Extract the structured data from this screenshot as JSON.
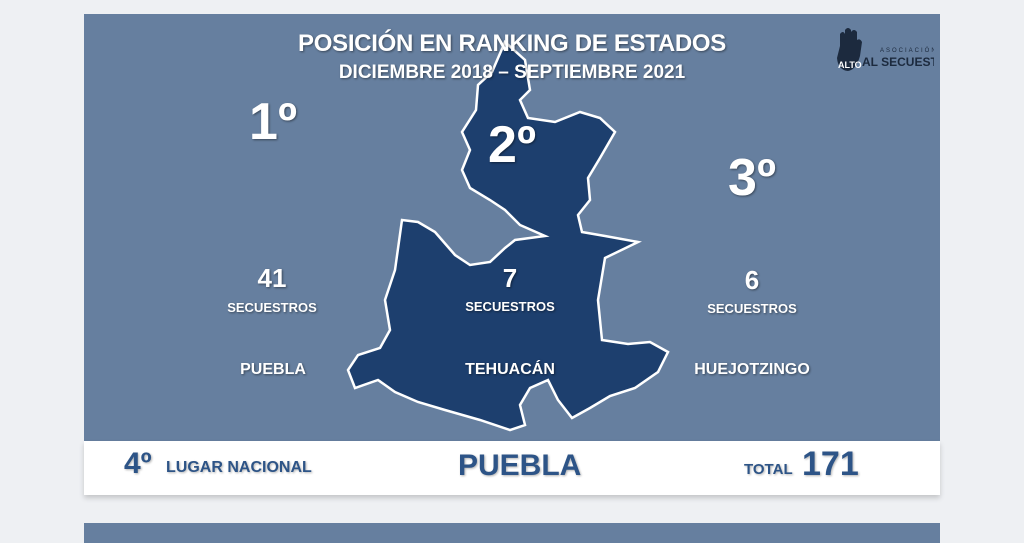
{
  "header": {
    "title": "POSICIÓN EN RANKING DE ESTADOS",
    "subtitle": "DICIEMBRE 2018 – SEPTIEMBRE 2021"
  },
  "logo": {
    "text_top": "ASOCIACIÓN",
    "text_hand": "ALTO",
    "text_main": "AL SECUESTRO"
  },
  "ranking": [
    {
      "position": "1º",
      "count": "41",
      "unit": "SECUESTROS",
      "city": "PUEBLA"
    },
    {
      "position": "2º",
      "count": "7",
      "unit": "SECUESTROS",
      "city": "TEHUACÁN"
    },
    {
      "position": "3º",
      "count": "6",
      "unit": "SECUESTROS",
      "city": "HUEJOTZINGO"
    }
  ],
  "footer": {
    "national_position": "4º",
    "national_label": "LUGAR NACIONAL",
    "state": "PUEBLA",
    "total_label": "TOTAL",
    "total": "171"
  },
  "colors": {
    "panel": "#667f9f",
    "map": "#1d3f6e",
    "accent": "#2d5487"
  }
}
